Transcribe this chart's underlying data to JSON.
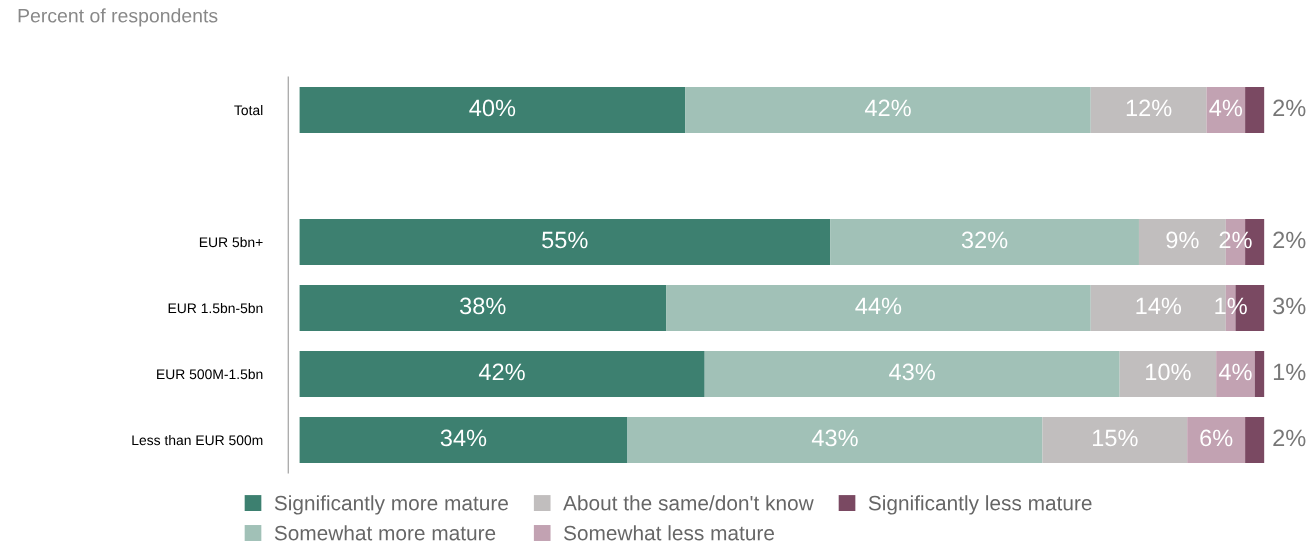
{
  "chart_data": {
    "type": "bar",
    "orientation": "horizontal",
    "stacked": true,
    "subtitle": "Percent of respondents",
    "categories": [
      "Total",
      null,
      "EUR 5bn+",
      "EUR 1.5bn-5bn",
      "EUR 500M-1.5bn",
      "Less than EUR 500m"
    ],
    "series": [
      {
        "name": "Significantly more mature",
        "color": "#3d8070",
        "values": [
          40,
          null,
          55,
          38,
          42,
          34
        ],
        "value_labels": [
          "40%",
          null,
          "55%",
          "38%",
          "42%",
          "34%"
        ]
      },
      {
        "name": "Somewhat more mature",
        "color": "#a1c1b7",
        "values": [
          42,
          null,
          32,
          44,
          43,
          43
        ],
        "value_labels": [
          "42%",
          null,
          "32%",
          "44%",
          "43%",
          "43%"
        ]
      },
      {
        "name": "About the same/don't know",
        "color": "#c1bebe",
        "values": [
          12,
          null,
          9,
          14,
          10,
          15
        ],
        "value_labels": [
          "12%",
          null,
          "9%",
          "14%",
          "10%",
          "15%"
        ]
      },
      {
        "name": "Somewhat less mature",
        "color": "#c2a2b2",
        "values": [
          4,
          null,
          2,
          1,
          4,
          6
        ],
        "value_labels": [
          "4%",
          null,
          "2%",
          "1%",
          "4%",
          "6%"
        ]
      },
      {
        "name": "Significantly less mature",
        "color": "#7a4962",
        "values": [
          2,
          null,
          2,
          3,
          1,
          2
        ],
        "value_labels": [
          "2%",
          null,
          "2%",
          "3%",
          "1%",
          "2%"
        ]
      }
    ],
    "legend": "bottom",
    "grid": false
  }
}
